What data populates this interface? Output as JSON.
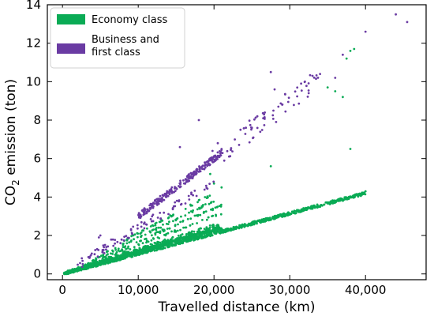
{
  "chart_data": {
    "type": "scatter",
    "xlabel": "Travelled distance (km)",
    "ylabel": {
      "prefix": "CO",
      "sub": "2",
      "suffix": " emission (ton)"
    },
    "xlim": [
      -2000,
      48000
    ],
    "ylim": [
      -0.3,
      14
    ],
    "xticks": [
      0,
      10000,
      20000,
      30000,
      40000
    ],
    "xtick_labels": [
      "0",
      "10,000",
      "20,000",
      "30,000",
      "40,000"
    ],
    "yticks": [
      0,
      2,
      4,
      6,
      8,
      10,
      12,
      14
    ],
    "ytick_labels": [
      "0",
      "2",
      "4",
      "6",
      "8",
      "10",
      "12",
      "14"
    ],
    "grid": false,
    "legend": "top-left",
    "series": [
      {
        "name": "Economy class",
        "color": "#0aab55",
        "bands": [
          {
            "slope": 0.000105,
            "x0": 200,
            "x1": 40000,
            "n": 900,
            "spread": 0.08
          },
          {
            "slope": 0.000115,
            "x0": 200,
            "x1": 21000,
            "n": 500,
            "spread": 0.08
          },
          {
            "slope": 0.000125,
            "x0": 200,
            "x1": 21000,
            "n": 220,
            "spread": 0.1
          },
          {
            "slope": 0.00015,
            "x0": 2000,
            "x1": 21000,
            "n": 70,
            "spread": 0.06
          },
          {
            "slope": 0.00017,
            "x0": 3000,
            "x1": 21000,
            "n": 70,
            "spread": 0.06
          },
          {
            "slope": 0.00019,
            "x0": 4000,
            "x1": 20000,
            "n": 60,
            "spread": 0.06
          },
          {
            "slope": 0.00021,
            "x0": 8000,
            "x1": 20000,
            "n": 45,
            "spread": 0.06
          }
        ],
        "points": [
          [
            27500,
            5.6
          ],
          [
            35000,
            9.7
          ],
          [
            36000,
            9.5
          ],
          [
            37000,
            9.2
          ],
          [
            37500,
            11.2
          ],
          [
            38000,
            11.6
          ],
          [
            38500,
            11.7
          ],
          [
            38000,
            6.5
          ],
          [
            39500,
            4.2
          ],
          [
            40000,
            4.3
          ],
          [
            21000,
            4.5
          ],
          [
            20000,
            4.7
          ],
          [
            19500,
            5.2
          ],
          [
            26500,
            2.8
          ],
          [
            31000,
            3.3
          ]
        ]
      },
      {
        "name": "Business and first class",
        "color": "#6a3ba3",
        "bands": [
          {
            "slope": 0.0003,
            "x0": 10000,
            "x1": 21000,
            "n": 260,
            "spread": 0.18
          },
          {
            "slope": 0.00024,
            "x0": 2000,
            "x1": 20000,
            "n": 90,
            "spread": 0.25
          },
          {
            "slope": 0.0003,
            "x0": 21000,
            "x1": 34000,
            "n": 60,
            "spread": 0.6
          }
        ],
        "points": [
          [
            4800,
            1.9
          ],
          [
            5000,
            2.0
          ],
          [
            15500,
            6.6
          ],
          [
            18000,
            8.0
          ],
          [
            20500,
            6.8
          ],
          [
            27500,
            10.5
          ],
          [
            28000,
            9.6
          ],
          [
            28500,
            8.7
          ],
          [
            29000,
            8.8
          ],
          [
            26500,
            8.1
          ],
          [
            31500,
            9.9
          ],
          [
            32000,
            10.0
          ],
          [
            33000,
            10.3
          ],
          [
            34000,
            10.4
          ],
          [
            32500,
            9.4
          ],
          [
            36000,
            10.2
          ],
          [
            37000,
            11.4
          ],
          [
            40000,
            12.6
          ],
          [
            44000,
            13.5
          ],
          [
            45500,
            13.1
          ],
          [
            21000,
            6.5
          ],
          [
            19800,
            6.4
          ],
          [
            25000,
            7.6
          ],
          [
            23500,
            7.5
          ]
        ]
      }
    ]
  }
}
